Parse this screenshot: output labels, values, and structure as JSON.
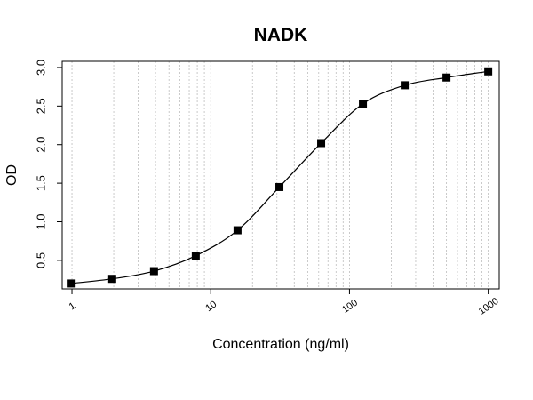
{
  "chart_data": {
    "type": "scatter",
    "title": "NADK",
    "xlabel": "Concentration (ng/ml)",
    "ylabel": "OD",
    "x_scale": "log",
    "xlim": [
      0.85,
      1200
    ],
    "ylim": [
      0.13,
      3.08
    ],
    "x_ticks": [
      1,
      10,
      100,
      1000
    ],
    "x_tick_labels": [
      "1",
      "10",
      "100",
      "1000"
    ],
    "y_ticks": [
      0.5,
      1.0,
      1.5,
      2.0,
      2.5,
      3.0
    ],
    "y_tick_labels": [
      "0.5",
      "1.0",
      "1.5",
      "2.0",
      "2.5",
      "3.0"
    ],
    "grid": "vertical-dotted-log",
    "curve": "4pl-fit",
    "series": [
      {
        "marker": "square",
        "color": "#000000",
        "x": [
          0.98,
          1.95,
          3.9,
          7.8,
          15.6,
          31.25,
          62.5,
          125,
          250,
          500,
          1000
        ],
        "y": [
          0.2,
          0.26,
          0.36,
          0.56,
          0.89,
          1.45,
          2.02,
          2.53,
          2.77,
          2.87,
          2.95
        ]
      }
    ]
  }
}
